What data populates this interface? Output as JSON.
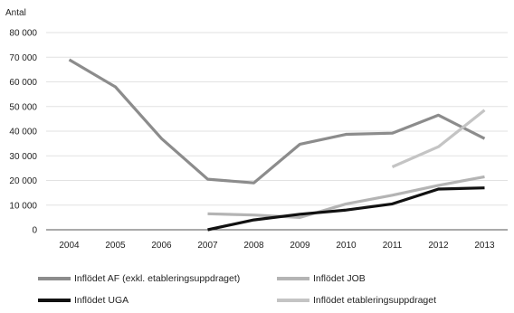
{
  "chart_data": {
    "type": "line",
    "ylabel": "Antal",
    "xlabel": "",
    "categories": [
      "2004",
      "2005",
      "2006",
      "2007",
      "2008",
      "2009",
      "2010",
      "2011",
      "2012",
      "2013"
    ],
    "ylim": [
      0,
      80000
    ],
    "yticks": [
      0,
      10000,
      20000,
      30000,
      40000,
      50000,
      60000,
      70000,
      80000
    ],
    "ytick_labels": [
      "0",
      "10 000",
      "20 000",
      "30 000",
      "40 000",
      "50 000",
      "60 000",
      "70 000",
      "80 000"
    ],
    "grid": true,
    "legend_position": "bottom",
    "series": [
      {
        "name": "Inflödet AF (exkl. etableringsuppdraget)",
        "color": "#8c8c8c",
        "values": [
          69000,
          58000,
          37000,
          20500,
          19000,
          34700,
          38700,
          39200,
          46500,
          37000
        ]
      },
      {
        "name": "Inflödet JOB",
        "color": "#b4b4b4",
        "values": [
          null,
          null,
          null,
          6500,
          6000,
          5000,
          10500,
          14000,
          18000,
          21500
        ]
      },
      {
        "name": "Inflödet UGA",
        "color": "#111111",
        "values": [
          null,
          null,
          null,
          0,
          4000,
          6300,
          8000,
          10500,
          16500,
          17000
        ]
      },
      {
        "name": "Inflödet etableringsuppdraget",
        "color": "#c4c4c4",
        "values": [
          null,
          null,
          null,
          null,
          null,
          null,
          null,
          25500,
          33700,
          48500
        ]
      }
    ]
  }
}
